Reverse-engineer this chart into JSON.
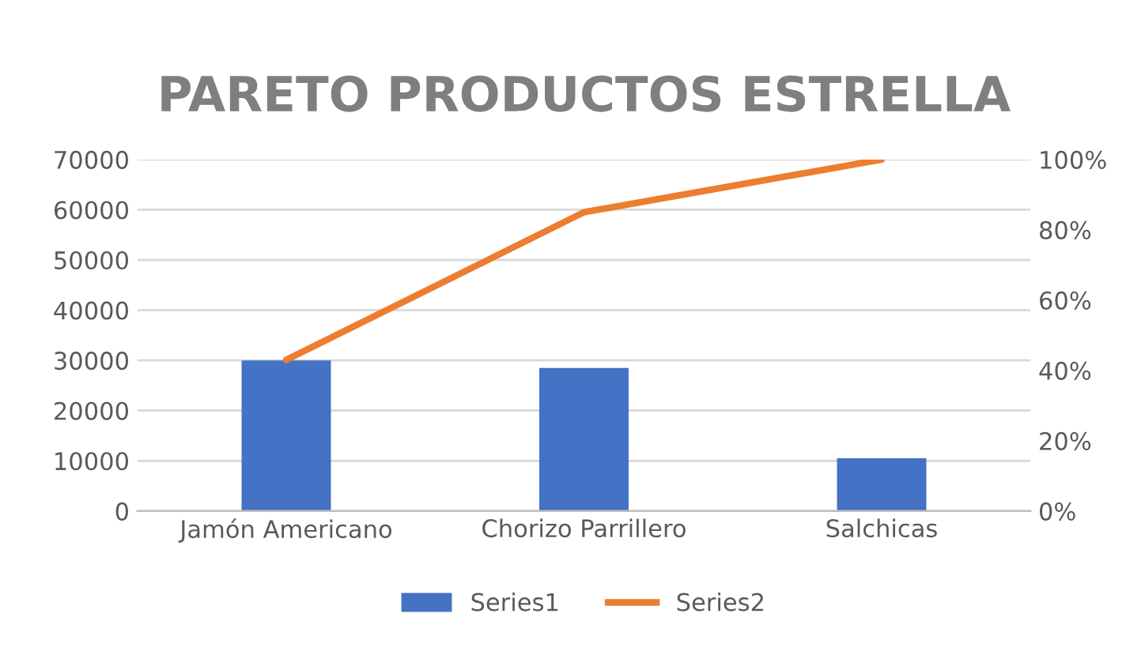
{
  "chart_data": {
    "type": "bar",
    "title": "PARETO PRODUCTOS ESTRELLA",
    "categories": [
      "Jamón Americano",
      "Chorizo Parrillero",
      "Salchicas"
    ],
    "series": [
      {
        "name": "Series1",
        "color": "#4472c4",
        "values": [
          30000,
          28500,
          10500
        ]
      },
      {
        "name": "Series2",
        "color": "#ed7d31",
        "type": "line",
        "axis": "y2",
        "values": [
          43,
          85,
          100
        ]
      }
    ],
    "ylim": [
      0,
      70000
    ],
    "yticks": [
      0,
      10000,
      20000,
      30000,
      40000,
      50000,
      60000,
      70000
    ],
    "y2lim": [
      0,
      100
    ],
    "y2ticks": [
      {
        "value": 0,
        "label": "0%"
      },
      {
        "value": 20,
        "label": "20%"
      },
      {
        "value": 40,
        "label": "40%"
      },
      {
        "value": 60,
        "label": "60%"
      },
      {
        "value": 80,
        "label": "80%"
      },
      {
        "value": 100,
        "label": "100%"
      }
    ],
    "grid": "y",
    "legend": "bottom",
    "marker": "none",
    "line_style": "solid"
  }
}
